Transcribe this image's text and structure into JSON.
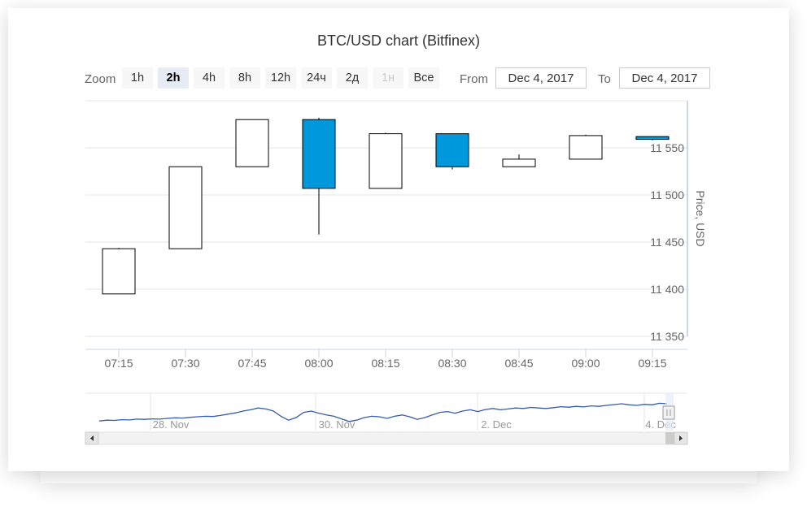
{
  "chart_title": "BTC/USD chart (Bitfinex)",
  "zoom": {
    "label": "Zoom",
    "buttons": [
      {
        "label": "1h",
        "state": "normal"
      },
      {
        "label": "2h",
        "state": "active"
      },
      {
        "label": "4h",
        "state": "normal"
      },
      {
        "label": "8h",
        "state": "normal"
      },
      {
        "label": "12h",
        "state": "normal"
      },
      {
        "label": "24ч",
        "state": "normal"
      },
      {
        "label": "2д",
        "state": "normal"
      },
      {
        "label": "1н",
        "state": "disabled"
      },
      {
        "label": "Все",
        "state": "normal"
      }
    ]
  },
  "range": {
    "from_label": "From",
    "from_value": "Dec 4, 2017",
    "to_label": "To",
    "to_value": "Dec 4, 2017"
  },
  "colors": {
    "up_fill": "#ffffff",
    "down_fill": "#0098dc",
    "candle_stroke": "#000000",
    "navigator_line": "#335cad",
    "navigator_mask": "#e6ebf5",
    "grid": "#e6e6e6",
    "axis_accent": "#ccd6eb"
  },
  "chart_data": {
    "type": "candlestick",
    "yaxis_title": "Price, USD",
    "y_ticks": [
      11350,
      11400,
      11450,
      11500,
      11550
    ],
    "ylim": [
      11350,
      11600
    ],
    "x_ticks": [
      "07:15",
      "07:30",
      "07:45",
      "08:00",
      "08:15",
      "08:30",
      "08:45",
      "09:00",
      "09:15"
    ],
    "candles": [
      {
        "time": "07:15",
        "open": 11395,
        "high": 11444,
        "low": 11395,
        "close": 11443
      },
      {
        "time": "07:30",
        "open": 11443,
        "high": 11530,
        "low": 11443,
        "close": 11530
      },
      {
        "time": "07:45",
        "open": 11530,
        "high": 11580,
        "low": 11530,
        "close": 11580
      },
      {
        "time": "08:00",
        "open": 11580,
        "high": 11582,
        "low": 11458,
        "close": 11507
      },
      {
        "time": "08:15",
        "open": 11507,
        "high": 11566,
        "low": 11507,
        "close": 11565
      },
      {
        "time": "08:30",
        "open": 11565,
        "high": 11565,
        "low": 11527,
        "close": 11530
      },
      {
        "time": "08:45",
        "open": 11530,
        "high": 11543,
        "low": 11530,
        "close": 11538
      },
      {
        "time": "09:00",
        "open": 11538,
        "high": 11564,
        "low": 11538,
        "close": 11563
      },
      {
        "time": "09:15",
        "open": 11562,
        "high": 11562,
        "low": 11558,
        "close": 11559
      }
    ],
    "navigator": {
      "x_labels": [
        "28. Nov",
        "30. Nov",
        "2. Dec",
        "4. Dec"
      ],
      "series": [
        0.12,
        0.15,
        0.14,
        0.17,
        0.16,
        0.19,
        0.18,
        0.2,
        0.19,
        0.22,
        0.24,
        0.23,
        0.26,
        0.28,
        0.3,
        0.29,
        0.33,
        0.38,
        0.43,
        0.5,
        0.55,
        0.62,
        0.58,
        0.5,
        0.3,
        0.15,
        0.25,
        0.45,
        0.5,
        0.42,
        0.35,
        0.3,
        0.2,
        0.1,
        0.15,
        0.25,
        0.3,
        0.28,
        0.22,
        0.3,
        0.35,
        0.28,
        0.18,
        0.25,
        0.35,
        0.45,
        0.48,
        0.42,
        0.5,
        0.55,
        0.48,
        0.56,
        0.6,
        0.55,
        0.58,
        0.62,
        0.6,
        0.64,
        0.62,
        0.6,
        0.63,
        0.67,
        0.65,
        0.68,
        0.66,
        0.7,
        0.68,
        0.72,
        0.75,
        0.78,
        0.74,
        0.72,
        0.76,
        0.74,
        0.8,
        0.78
      ]
    }
  }
}
